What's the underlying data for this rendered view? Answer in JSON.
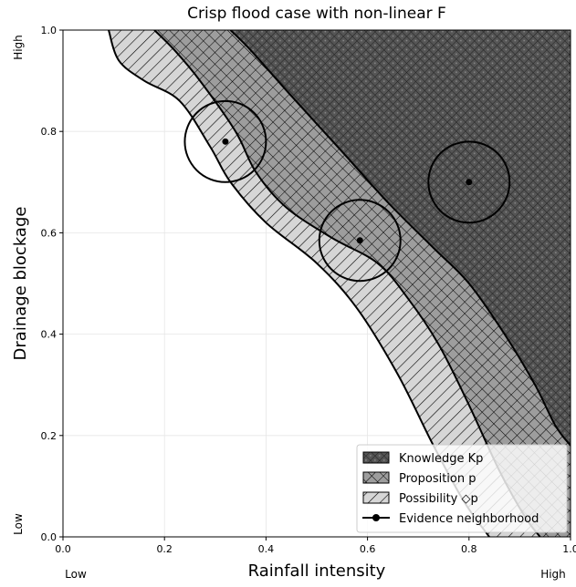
{
  "chart_data": {
    "type": "area",
    "title": "Crisp flood case with non-linear F",
    "xlabel": "Rainfall intensity",
    "ylabel": "Drainage blockage",
    "xlim": [
      0,
      1
    ],
    "ylim": [
      0,
      1
    ],
    "x_ticks": [
      "0.0",
      "0.2",
      "0.4",
      "0.6",
      "0.8",
      "1.0"
    ],
    "y_ticks": [
      "0.0",
      "0.2",
      "0.4",
      "0.6",
      "0.8",
      "1.0"
    ],
    "x_end_labels": {
      "low": "Low",
      "high": "High"
    },
    "y_end_labels": {
      "low": "Low",
      "high": "High"
    },
    "grid": true,
    "legend_position": "lower-right",
    "regions": [
      {
        "name": "Knowledge Kp",
        "pattern": "dense-crosshatch-dots",
        "color": "#555555",
        "boundary": [
          [
            0.33,
            1.0
          ],
          [
            0.37,
            0.96
          ],
          [
            0.45,
            0.87
          ],
          [
            0.55,
            0.76
          ],
          [
            0.64,
            0.66
          ],
          [
            0.73,
            0.57
          ],
          [
            0.8,
            0.5
          ],
          [
            0.87,
            0.4
          ],
          [
            0.93,
            0.3
          ],
          [
            0.97,
            0.22
          ],
          [
            1.0,
            0.18
          ]
        ]
      },
      {
        "name": "Proposition p",
        "pattern": "crosshatch",
        "color": "#999999",
        "boundary": [
          [
            0.18,
            1.0
          ],
          [
            0.22,
            0.96
          ],
          [
            0.27,
            0.9
          ],
          [
            0.34,
            0.8
          ],
          [
            0.38,
            0.72
          ],
          [
            0.44,
            0.65
          ],
          [
            0.53,
            0.59
          ],
          [
            0.62,
            0.54
          ],
          [
            0.68,
            0.47
          ],
          [
            0.74,
            0.38
          ],
          [
            0.8,
            0.26
          ],
          [
            0.86,
            0.13
          ],
          [
            0.91,
            0.04
          ],
          [
            0.94,
            0.0
          ]
        ]
      },
      {
        "name": "Possibility ◇p",
        "pattern": "diagonal-hatch",
        "color": "#d3d3d3",
        "boundary": [
          [
            0.09,
            1.0
          ],
          [
            0.11,
            0.94
          ],
          [
            0.16,
            0.9
          ],
          [
            0.23,
            0.86
          ],
          [
            0.29,
            0.77
          ],
          [
            0.33,
            0.7
          ],
          [
            0.4,
            0.62
          ],
          [
            0.5,
            0.54
          ],
          [
            0.58,
            0.45
          ],
          [
            0.66,
            0.32
          ],
          [
            0.73,
            0.18
          ],
          [
            0.79,
            0.07
          ],
          [
            0.84,
            0.0
          ]
        ]
      }
    ],
    "evidence_neighborhoods": [
      {
        "x": 0.32,
        "y": 0.78,
        "radius": 0.08
      },
      {
        "x": 0.585,
        "y": 0.585,
        "radius": 0.08
      },
      {
        "x": 0.8,
        "y": 0.7,
        "radius": 0.08
      }
    ],
    "legend": [
      {
        "label": "Knowledge Kp",
        "swatch": "knowledge"
      },
      {
        "label": "Proposition p",
        "swatch": "proposition"
      },
      {
        "label": "Possibility ◇p",
        "swatch": "possibility"
      },
      {
        "label": "Evidence neighborhood",
        "swatch": "evidence"
      }
    ]
  }
}
